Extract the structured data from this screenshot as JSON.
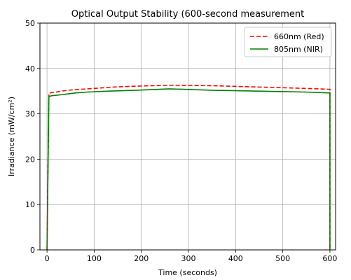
{
  "chart_data": {
    "type": "line",
    "title": "Optical Output Stability (600-second measurement",
    "xlabel": "Time (seconds)",
    "ylabel": "Irradiance (mW/cm²)",
    "xlim": [
      -15,
      612
    ],
    "ylim": [
      0,
      50
    ],
    "xticks": [
      0,
      100,
      200,
      300,
      400,
      500,
      600
    ],
    "yticks": [
      0,
      10,
      20,
      30,
      40,
      50
    ],
    "grid": true,
    "legend_position": "top-right",
    "series": [
      {
        "name": "660nm (Red)",
        "color": "#ff0000",
        "line_style": "dashed",
        "x": [
          0,
          4,
          4,
          10,
          10,
          20,
          20,
          30,
          30,
          45,
          45,
          70,
          70,
          100,
          100,
          140,
          140,
          190,
          190,
          260,
          260,
          350,
          450,
          550,
          600,
          600
        ],
        "y": [
          0,
          34.5,
          34.5,
          34.7,
          34.7,
          34.8,
          34.8,
          35.0,
          35.0,
          35.2,
          35.2,
          35.4,
          35.4,
          35.6,
          35.6,
          35.9,
          35.9,
          36.1,
          36.1,
          36.3,
          36.3,
          36.2,
          35.9,
          35.6,
          35.4,
          0
        ]
      },
      {
        "name": "805nm (NIR)",
        "color": "#008000",
        "line_style": "solid",
        "x": [
          0,
          4,
          4,
          10,
          10,
          20,
          20,
          30,
          30,
          45,
          45,
          60,
          60,
          85,
          85,
          130,
          130,
          190,
          190,
          260,
          260,
          350,
          450,
          550,
          600,
          600
        ],
        "y": [
          0,
          33.8,
          33.8,
          34.0,
          34.0,
          34.1,
          34.1,
          34.2,
          34.2,
          34.4,
          34.4,
          34.6,
          34.6,
          34.8,
          34.8,
          35.0,
          35.0,
          35.2,
          35.2,
          35.5,
          35.5,
          35.2,
          35.0,
          34.8,
          34.6,
          0
        ]
      }
    ]
  }
}
